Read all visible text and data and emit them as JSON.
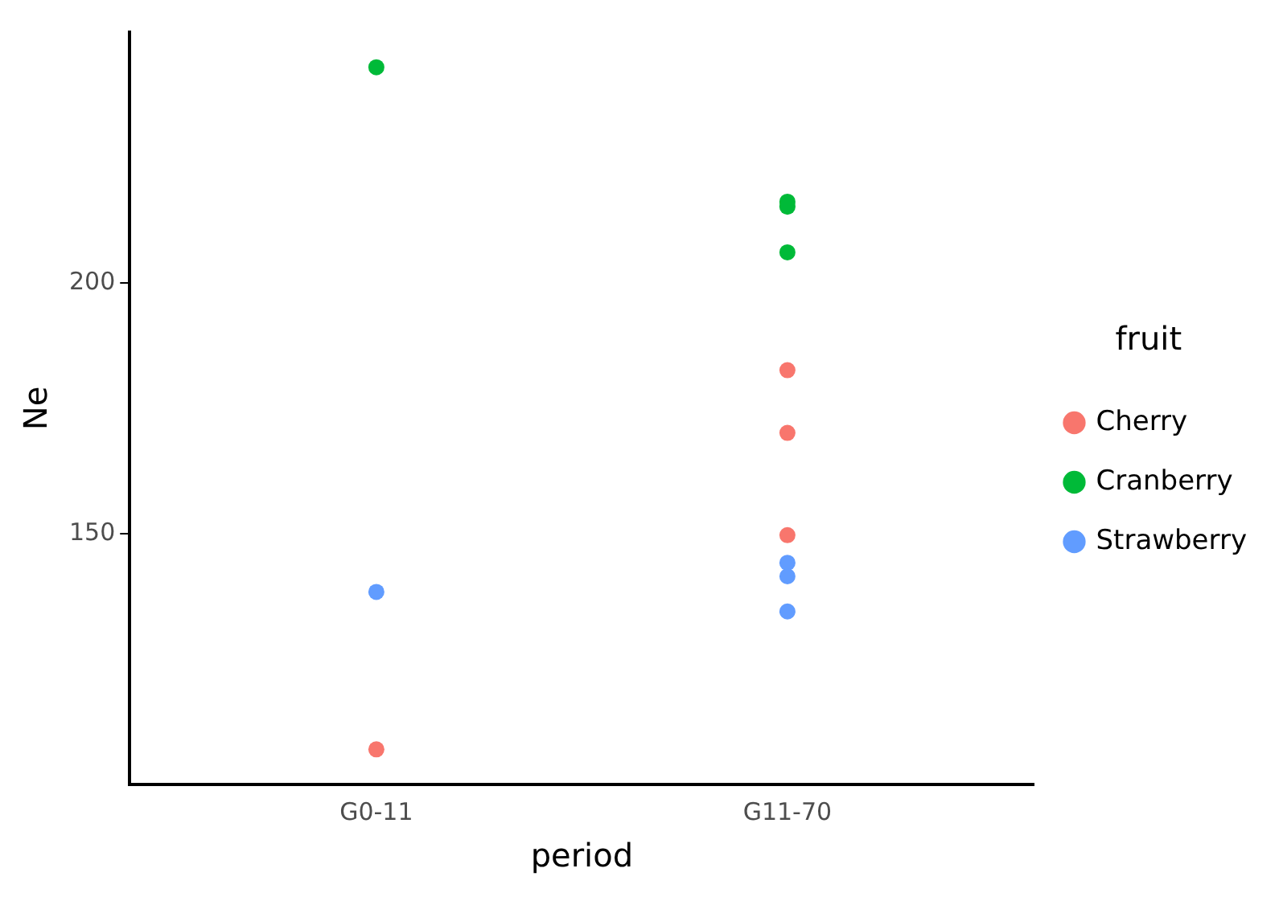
{
  "chart_data": {
    "type": "scatter",
    "xlabel": "period",
    "ylabel": "Ne",
    "legend_title": "fruit",
    "categories": [
      "G0-11",
      "G11-70"
    ],
    "series": [
      {
        "name": "Cherry",
        "color": "#f8766d",
        "x": [
          "G0-11",
          "G11-70",
          "G11-70",
          "G11-70"
        ],
        "values": [
          107,
          182.6,
          170.1,
          149.7
        ]
      },
      {
        "name": "Cranberry",
        "color": "#00ba38",
        "x": [
          "G0-11",
          "G11-70",
          "G11-70",
          "G11-70"
        ],
        "values": [
          243,
          216.2,
          215.2,
          206.1
        ]
      },
      {
        "name": "Strawberry",
        "color": "#619cff",
        "x": [
          "G0-11",
          "G11-70",
          "G11-70",
          "G11-70"
        ],
        "values": [
          138.4,
          144.2,
          141.5,
          134.5
        ]
      }
    ],
    "ylim": [
      100,
      250
    ],
    "yticks": [
      150,
      200
    ],
    "grid": false,
    "legend": "right",
    "marker": "circle"
  }
}
